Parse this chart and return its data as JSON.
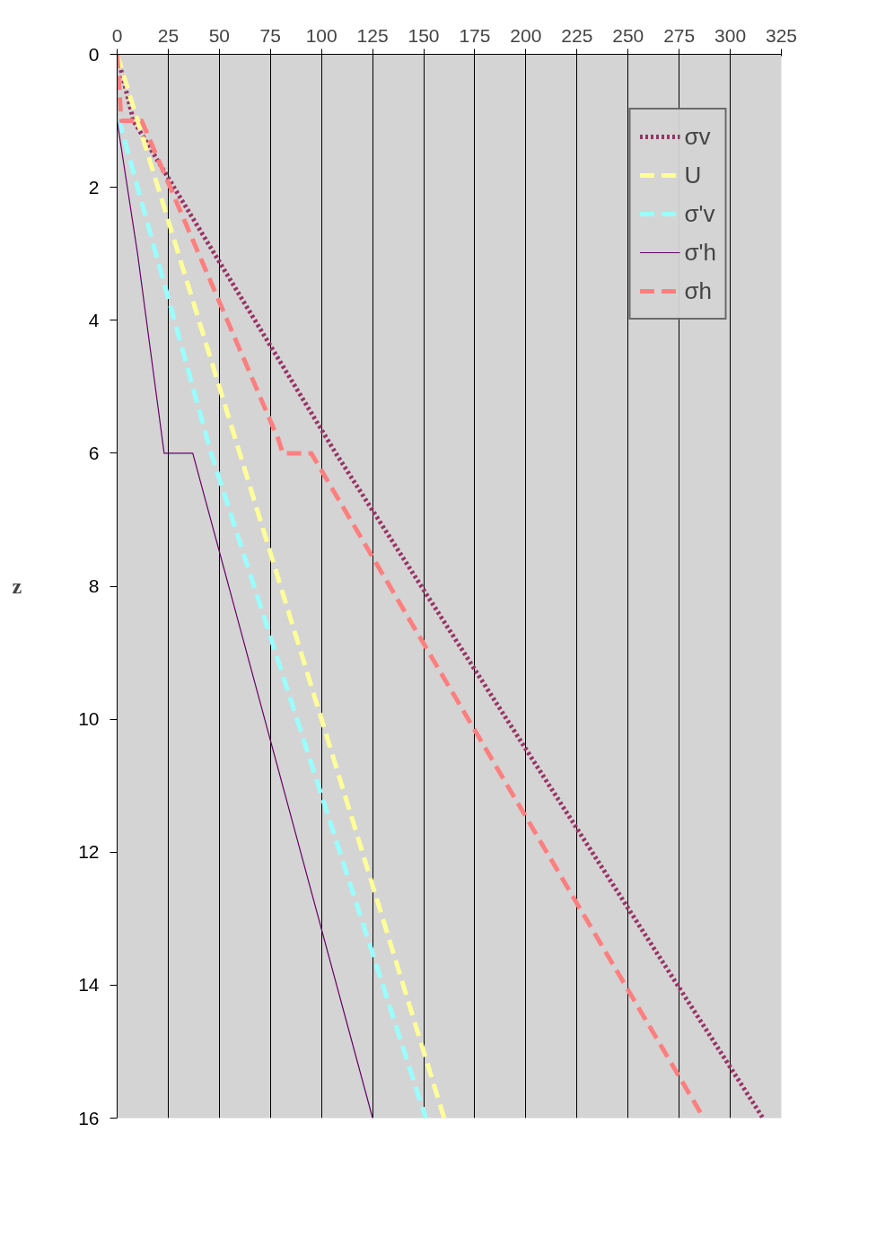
{
  "chart_data": {
    "type": "line",
    "ylabel": "z",
    "xlim": [
      0,
      325
    ],
    "xticks": [
      0,
      25,
      50,
      75,
      100,
      125,
      150,
      175,
      200,
      225,
      250,
      275,
      300,
      325
    ],
    "ylim": [
      16,
      0
    ],
    "yticks": [
      0,
      2,
      4,
      6,
      8,
      10,
      12,
      14,
      16
    ],
    "grid": "x",
    "legend": "top right",
    "series": [
      {
        "name": "σv",
        "color": "#993366",
        "line_style": "dotted",
        "x": [
          0,
          8,
          107,
          316
        ],
        "values": [
          0,
          1,
          6,
          16
        ]
      },
      {
        "name": "U",
        "color": "#ffff99",
        "line_style": "dashed",
        "x": [
          0,
          160
        ],
        "values": [
          0,
          16
        ]
      },
      {
        "name": "σ'v",
        "color": "#99ffff",
        "line_style": "dashed",
        "x": [
          0,
          1,
          23.5,
          46,
          151
        ],
        "values": [
          0,
          1,
          3.5,
          6,
          16
        ]
      },
      {
        "name": "σ'h",
        "color": "#660066",
        "line_style": "solid",
        "x": [
          0,
          0,
          10,
          23,
          37,
          125
        ],
        "values": [
          0,
          1,
          3,
          6,
          6,
          16
        ]
      },
      {
        "name": "σh",
        "color": "#ff7f7f",
        "line_style": "dashed",
        "x": [
          0,
          2,
          12,
          79,
          81,
          95,
          287
        ],
        "values": [
          0,
          1,
          1,
          5.8,
          6,
          6,
          16
        ]
      }
    ]
  }
}
